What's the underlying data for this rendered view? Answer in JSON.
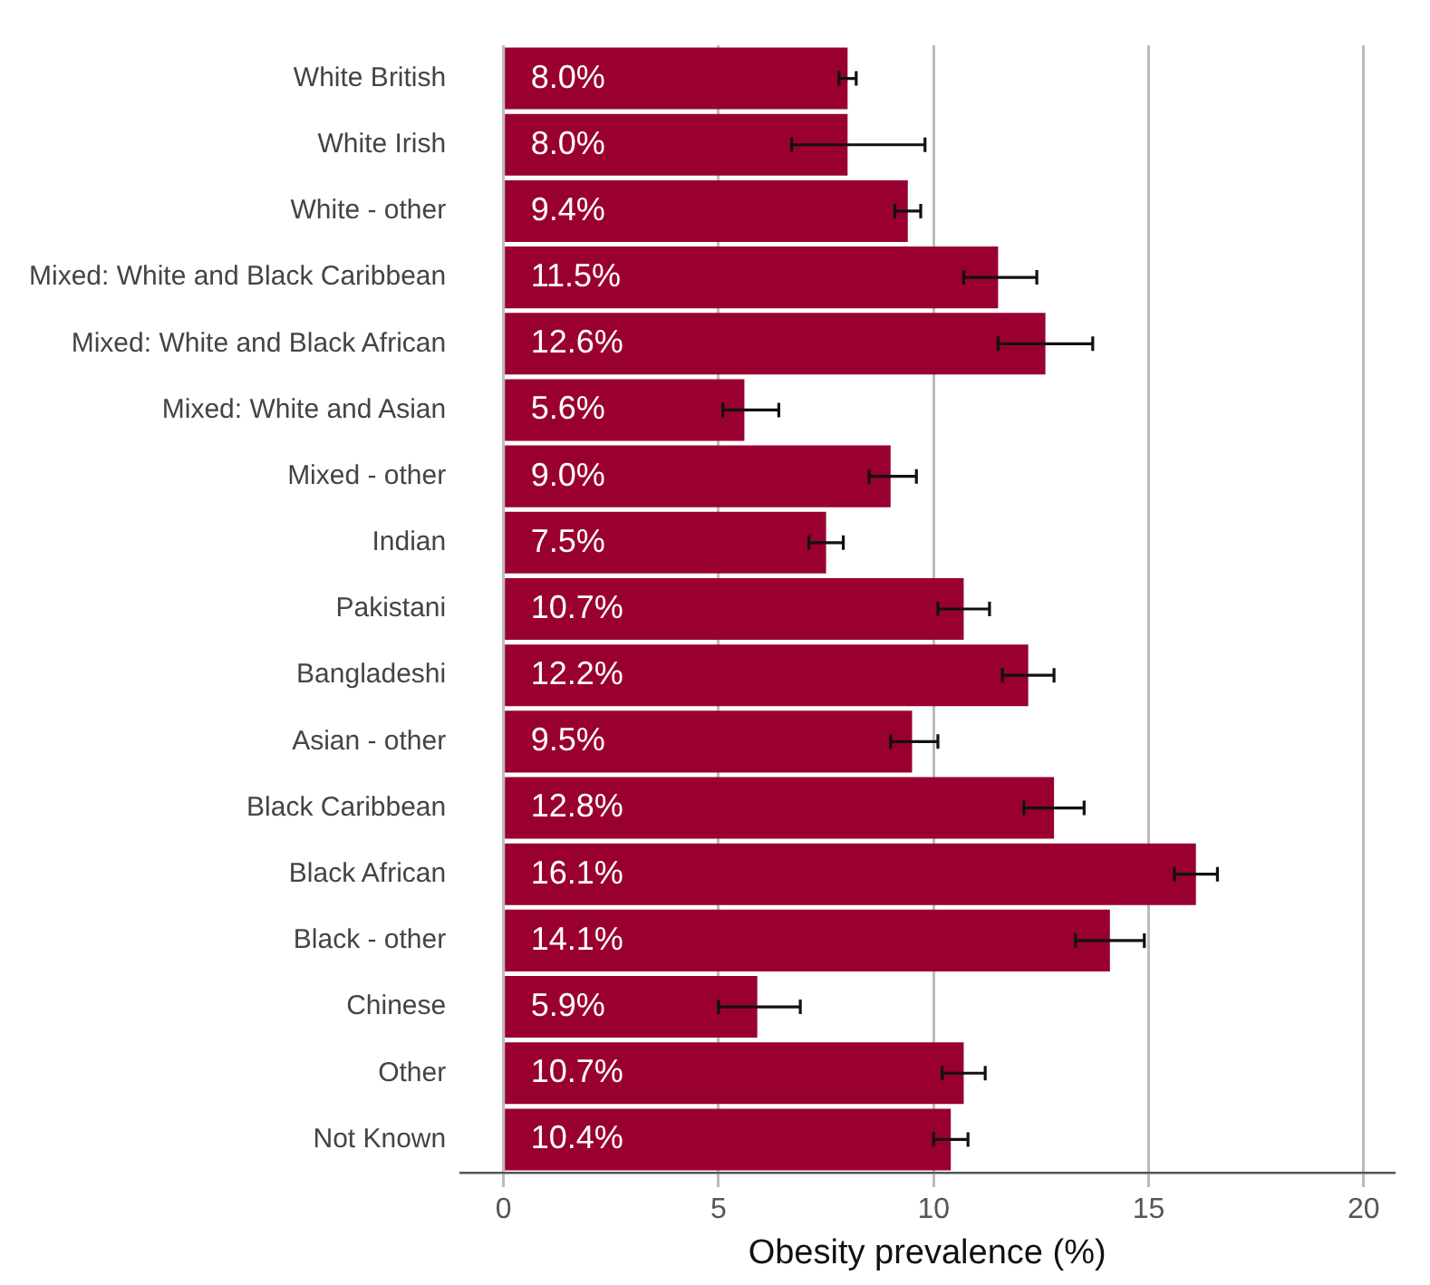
{
  "chart_data": {
    "type": "bar",
    "orientation": "horizontal",
    "xlabel": "Obesity prevalence (%)",
    "categories": [
      "White British",
      "White Irish",
      "White - other",
      "Mixed: White and Black Caribbean",
      "Mixed: White and Black African",
      "Mixed: White and Asian",
      "Mixed - other",
      "Indian",
      "Pakistani",
      "Bangladeshi",
      "Asian - other",
      "Black Caribbean",
      "Black African",
      "Black - other",
      "Chinese",
      "Other",
      "Not Known"
    ],
    "values": [
      8.0,
      8.0,
      9.4,
      11.5,
      12.6,
      5.6,
      9.0,
      7.5,
      10.7,
      12.2,
      9.5,
      12.8,
      16.1,
      14.1,
      5.9,
      10.7,
      10.4
    ],
    "value_labels": [
      "8.0%",
      "8.0%",
      "9.4%",
      "11.5%",
      "12.6%",
      "5.6%",
      "9.0%",
      "7.5%",
      "10.7%",
      "12.2%",
      "9.5%",
      "12.8%",
      "16.1%",
      "14.1%",
      "5.9%",
      "10.7%",
      "10.4%"
    ],
    "errors": [
      [
        7.8,
        8.2
      ],
      [
        6.7,
        9.8
      ],
      [
        9.1,
        9.7
      ],
      [
        10.7,
        12.4
      ],
      [
        11.5,
        13.7
      ],
      [
        5.1,
        6.4
      ],
      [
        8.5,
        9.6
      ],
      [
        7.1,
        7.9
      ],
      [
        10.1,
        11.3
      ],
      [
        11.6,
        12.8
      ],
      [
        9.0,
        10.1
      ],
      [
        12.1,
        13.5
      ],
      [
        15.6,
        16.6
      ],
      [
        13.3,
        14.9
      ],
      [
        5.0,
        6.9
      ],
      [
        10.2,
        11.2
      ],
      [
        10.0,
        10.8
      ]
    ],
    "color": "#990030",
    "xlim": [
      -1,
      20.7
    ],
    "xticks": [
      0,
      5,
      10,
      15,
      20
    ],
    "grid": "x",
    "legend": false
  }
}
